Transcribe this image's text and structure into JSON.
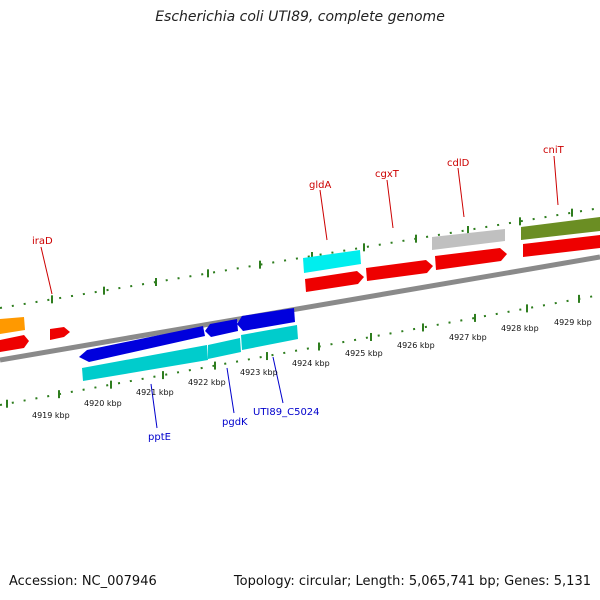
{
  "title": "Escherichia coli UTI89, complete genome",
  "footer": {
    "accession": "Accession: NC_007946",
    "summary": "Topology: circular; Length: 5,065,741 bp; Genes: 5,131"
  },
  "colors": {
    "forward_label": "#cc0000",
    "reverse_label": "#0000cc",
    "backbone": "#808080",
    "tick": "#2e7d1e"
  },
  "ticks": [
    "4919 kbp",
    "4920 kbp",
    "4921 kbp",
    "4922 kbp",
    "4923 kbp",
    "4924 kbp",
    "4925 kbp",
    "4926 kbp",
    "4927 kbp",
    "4928 kbp",
    "4929 kbp"
  ],
  "forward_labels": [
    "iraD",
    "gldA",
    "cgxT",
    "cdlD",
    "cniT"
  ],
  "reverse_labels": [
    "pptE",
    "pgdK",
    "UTI89_C5024"
  ]
}
